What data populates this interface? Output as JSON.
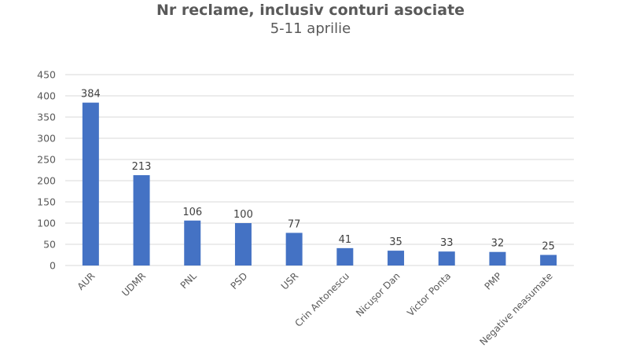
{
  "chart_data": {
    "type": "bar",
    "title": "Nr reclame, inclusiv conturi asociate",
    "subtitle": "5-11 aprilie",
    "xlabel": "",
    "ylabel": "",
    "categories": [
      "AUR",
      "UDMR",
      "PNL",
      "PSD",
      "USR",
      "Crin Antonescu",
      "Nicușor Dan",
      "Victor Ponta",
      "PMP",
      "Negative neasumate"
    ],
    "values": [
      384,
      213,
      106,
      100,
      77,
      41,
      35,
      33,
      32,
      25
    ],
    "ylim": [
      0,
      450
    ],
    "yticks": [
      0,
      50,
      100,
      150,
      200,
      250,
      300,
      350,
      400,
      450
    ],
    "grid": true,
    "legend": null,
    "data_labels": true,
    "bar_color": "#4472C4"
  },
  "colors": {
    "bar": "#4472C4",
    "grid": "#D9D9D9",
    "text": "#595959"
  }
}
